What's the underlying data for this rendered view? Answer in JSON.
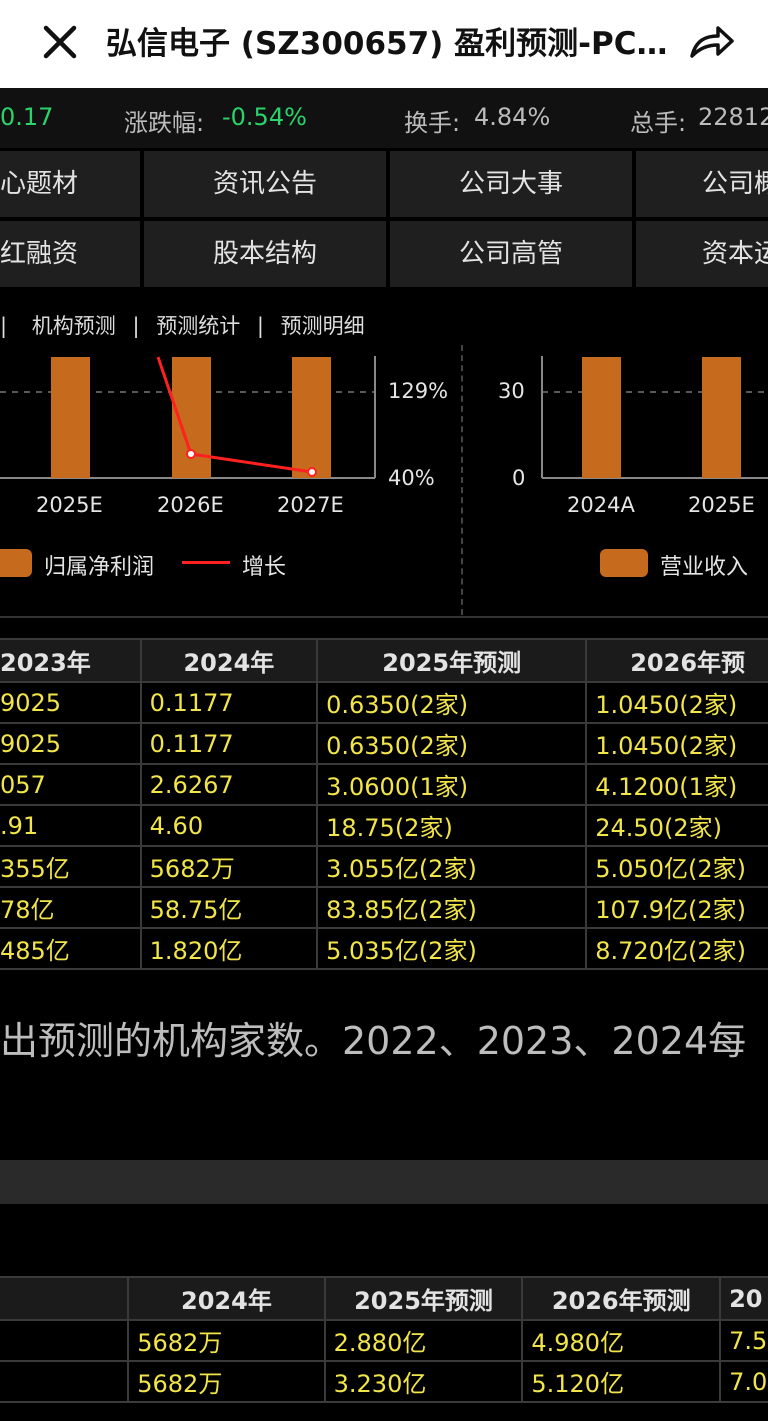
{
  "header": {
    "title": "弘信电子 (SZ300657) 盈利预测-PC…"
  },
  "quote": {
    "price_change": "0.17",
    "pct_label": "涨跌幅:",
    "pct_value": "-0.54%",
    "turnover_label": "换手:",
    "turnover_value": "4.84%",
    "volume_label": "总手:",
    "volume_value": "22812"
  },
  "nav": {
    "row1": [
      "心题材",
      "资讯公告",
      "公司大事",
      "公司概"
    ],
    "row2": [
      "红融资",
      "股本结构",
      "公司高管",
      "资本运"
    ]
  },
  "subtabs": {
    "t0": "",
    "t1": "机构预测",
    "t2": "预测统计",
    "t3": "预测明细",
    "sep": "|"
  },
  "chart_data": [
    {
      "type": "bar",
      "categories": [
        "2025E",
        "2026E",
        "2027E"
      ],
      "y_right_ticks": [
        "129%",
        "40%"
      ],
      "series": [
        {
          "name": "归属净利润",
          "values": [
            null,
            null,
            null
          ]
        },
        {
          "name": "增长",
          "type": "line",
          "values": [
            null,
            70,
            45
          ]
        }
      ]
    },
    {
      "type": "bar",
      "categories": [
        "2024A",
        "2025E"
      ],
      "y_ticks": [
        "30",
        "0"
      ],
      "series": [
        {
          "name": "营业收入",
          "values": [
            null,
            null
          ]
        }
      ]
    }
  ],
  "legend1": {
    "bar": "归属净利润",
    "line": "增长"
  },
  "legend2": {
    "bar": "营业收入"
  },
  "table1": {
    "headers": [
      "2023年",
      "2024年",
      "2025年预测",
      "2026年预"
    ],
    "rows": [
      [
        "9025",
        "0.1177",
        "0.6350(2家)",
        "1.0450(2家)"
      ],
      [
        "9025",
        "0.1177",
        "0.6350(2家)",
        "1.0450(2家)"
      ],
      [
        "057",
        "2.6267",
        "3.0600(1家)",
        "4.1200(1家)"
      ],
      [
        ".91",
        "4.60",
        "18.75(2家)",
        "24.50(2家)"
      ],
      [
        "355亿",
        "5682万",
        "3.055亿(2家)",
        "5.050亿(2家)"
      ],
      [
        "78亿",
        "58.75亿",
        "83.85亿(2家)",
        "107.9亿(2家)"
      ],
      [
        "485亿",
        "1.820亿",
        "5.035亿(2家)",
        "8.720亿(2家)"
      ]
    ]
  },
  "note": "出预测的机构家数。2022、2023、2024每",
  "table2": {
    "headers": [
      "",
      "2024年",
      "2025年预测",
      "2026年预测",
      "20"
    ],
    "rows": [
      [
        "",
        "5682万",
        "2.880亿",
        "4.980亿",
        "7.5"
      ],
      [
        "",
        "5682万",
        "3.230亿",
        "5.120亿",
        "7.0"
      ]
    ]
  },
  "colors": {
    "bar": "#c66a1d",
    "line": "#ff2020",
    "positive": "#2bd36a",
    "table_value": "#f2e54a"
  }
}
